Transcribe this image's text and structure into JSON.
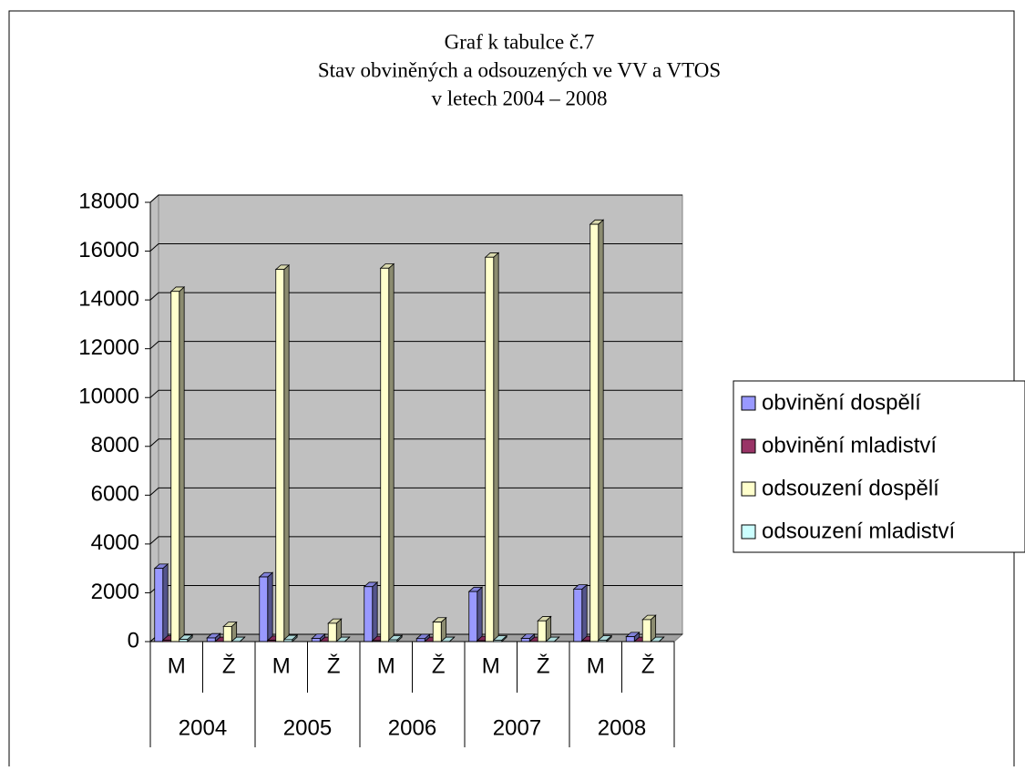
{
  "chart_data": {
    "type": "bar3d",
    "title": [
      "Graf k tabulce č.7",
      "Stav obviněných a odsouzených ve VV a VTOS",
      "v letech 2004 – 2008"
    ],
    "categories": [
      "M",
      "Ž",
      "M",
      "Ž",
      "M",
      "Ž",
      "M",
      "Ž",
      "M",
      "Ž"
    ],
    "category_groups": [
      "2004",
      "2005",
      "2006",
      "2007",
      "2008"
    ],
    "series": [
      {
        "name": "obvinění dospělí",
        "color": "#9999ff",
        "values": [
          3000,
          150,
          2650,
          130,
          2250,
          120,
          2050,
          130,
          2150,
          200
        ]
      },
      {
        "name": "obvinění mladiství",
        "color": "#993366",
        "values": [
          60,
          5,
          50,
          5,
          40,
          5,
          40,
          5,
          40,
          5
        ]
      },
      {
        "name": "odsouzení dospělí",
        "color": "#ffffcc",
        "values": [
          14350,
          620,
          15250,
          750,
          15300,
          800,
          15750,
          850,
          17100,
          900
        ]
      },
      {
        "name": "odsouzení mladiství",
        "color": "#ccffff",
        "values": [
          90,
          5,
          80,
          5,
          70,
          5,
          60,
          5,
          60,
          5
        ]
      }
    ],
    "ylim": [
      0,
      18000
    ],
    "yticks": [
      0,
      2000,
      4000,
      6000,
      8000,
      10000,
      12000,
      14000,
      16000,
      18000
    ],
    "grid": true,
    "wall_color": "#c0c0c0",
    "legend": "right"
  }
}
